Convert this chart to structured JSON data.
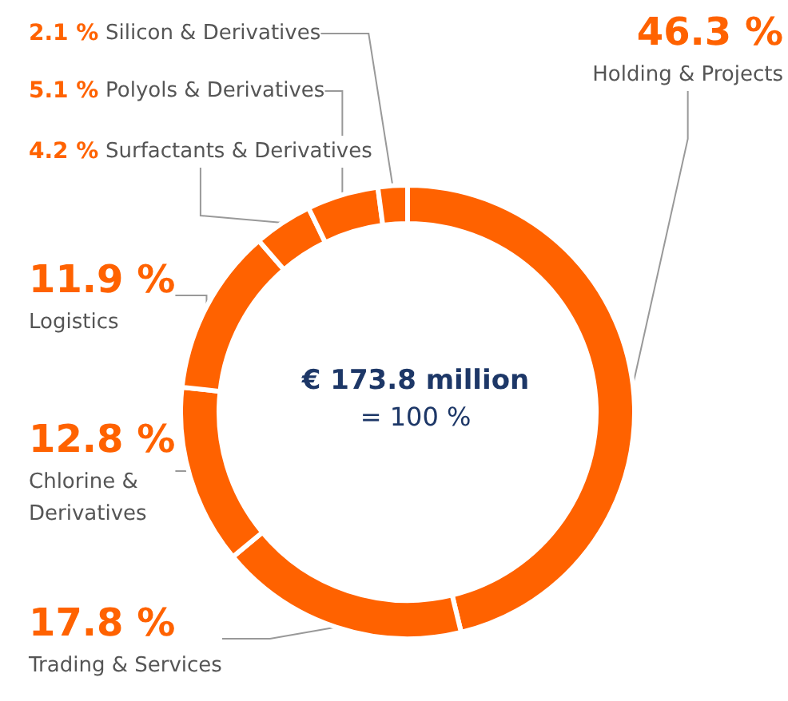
{
  "chart_data": {
    "type": "donut",
    "title": "€ 173.8 million",
    "subtitle": "= 100 %",
    "categories": [
      "Holding & Projects",
      "Trading & Services",
      "Chlorine & Derivatives",
      "Logistics",
      "Surfactants & Derivatives",
      "Polyols & Derivatives",
      "Silicon & Derivatives"
    ],
    "values": [
      46.3,
      17.8,
      12.8,
      11.9,
      4.2,
      5.1,
      2.1
    ],
    "value_labels": [
      "46.3 %",
      "17.8 %",
      "12.8 %",
      "11.9 %",
      "4.2 %",
      "5.1 %",
      "2.1 %"
    ],
    "colors": [
      "#ff6200",
      "#ff6200",
      "#ff6200",
      "#ff6200",
      "#ff6200",
      "#ff6200",
      "#ff6200"
    ]
  }
}
